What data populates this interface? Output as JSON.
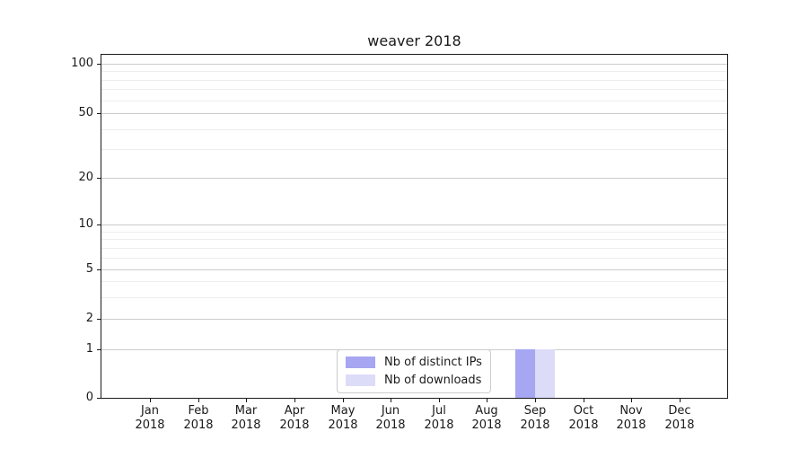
{
  "chart_data": {
    "type": "bar",
    "title": "weaver 2018",
    "categories": [
      "Jan",
      "Feb",
      "Mar",
      "Apr",
      "May",
      "Jun",
      "Jul",
      "Aug",
      "Sep",
      "Oct",
      "Nov",
      "Dec"
    ],
    "x_year_label": "2018",
    "series": [
      {
        "name": "Nb of distinct IPs",
        "color": "#a6a6f2",
        "values": [
          0,
          0,
          0,
          0,
          0,
          0,
          0,
          0,
          1,
          0,
          0,
          0
        ]
      },
      {
        "name": "Nb of downloads",
        "color": "#dcdcf9",
        "values": [
          0,
          0,
          0,
          0,
          0,
          0,
          0,
          0,
          1,
          0,
          0,
          0
        ]
      }
    ],
    "xlabel": "",
    "ylabel": "",
    "yscale": "symlog",
    "ylim": [
      0,
      110
    ],
    "yticks": [
      0,
      1,
      2,
      5,
      10,
      20,
      50,
      100
    ],
    "yticks_minor": [
      3,
      4,
      6,
      7,
      8,
      9,
      30,
      40,
      60,
      70,
      80,
      90
    ],
    "grid": "horizontal-only",
    "legend_position": "lower-center-inside",
    "colors": {
      "major_grid": "#cccccc",
      "minor_grid": "#ededed",
      "axis": "#1a1a1a",
      "text": "#1a1a1a",
      "legend_border": "#cccccc",
      "background": "#ffffff"
    }
  }
}
